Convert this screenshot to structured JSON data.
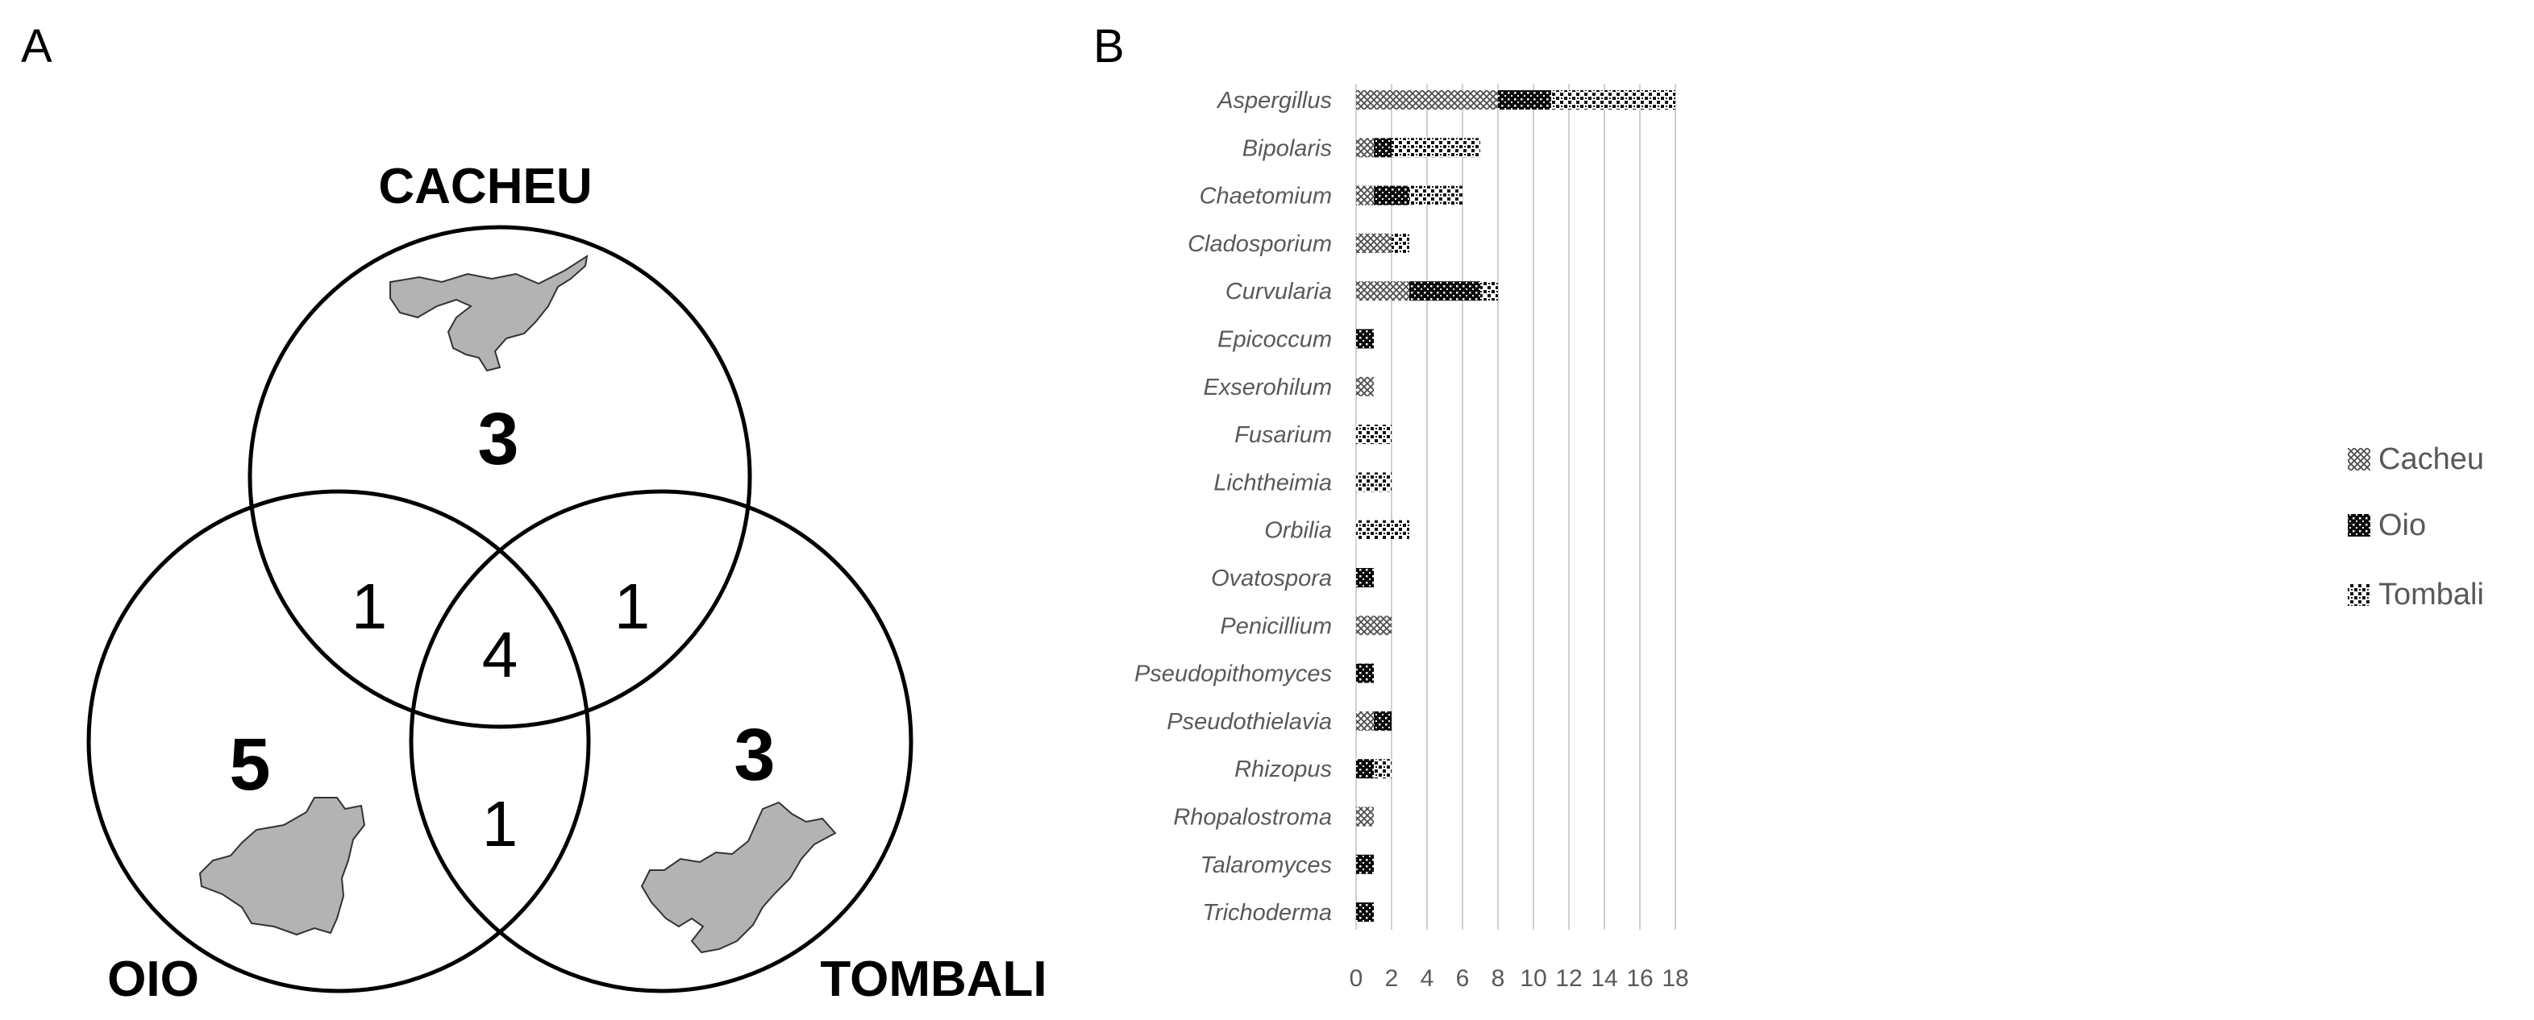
{
  "panel_a": {
    "label": "A",
    "regions": {
      "cacheu": "CACHEU",
      "oio": "OIO",
      "tombali": "TOMBALI"
    },
    "counts": {
      "cacheu_only": "3",
      "oio_only": "5",
      "tombali_only": "3",
      "cacheu_oio": "1",
      "cacheu_tombali": "1",
      "oio_tombali": "1",
      "all_three": "4"
    },
    "fill_color": "#b3b3b3"
  },
  "panel_b": {
    "label": "B"
  },
  "chart_data": {
    "type": "bar",
    "orientation": "horizontal",
    "stacked": true,
    "categories": [
      "Aspergillus",
      "Bipolaris",
      "Chaetomium",
      "Cladosporium",
      "Curvularia",
      "Epicoccum",
      "Exserohilum",
      "Fusarium",
      "Lichtheimia",
      "Orbilia",
      "Ovatospora",
      "Penicillium",
      "Pseudopithomyces",
      "Pseudothielavia",
      "Rhizopus",
      "Rhopalostroma",
      "Talaromyces",
      "Trichoderma"
    ],
    "series": [
      {
        "name": "Cacheu",
        "values": [
          8,
          1,
          1,
          2,
          3,
          0,
          1,
          0,
          0,
          0,
          0,
          2,
          0,
          1,
          0,
          1,
          0,
          0
        ],
        "color": "#8c8c8c"
      },
      {
        "name": "Oio",
        "values": [
          3,
          1,
          2,
          0,
          4,
          1,
          0,
          0,
          0,
          0,
          1,
          0,
          1,
          1,
          1,
          0,
          1,
          1
        ],
        "color": "#1a1a1a"
      },
      {
        "name": "Tombali",
        "values": [
          7,
          5,
          3,
          1,
          1,
          0,
          0,
          2,
          2,
          3,
          0,
          0,
          0,
          0,
          1,
          0,
          0,
          0
        ],
        "color": "#333333"
      }
    ],
    "xlim": [
      0,
      18
    ],
    "xticks": [
      "0",
      "2",
      "4",
      "6",
      "8",
      "10",
      "12",
      "14",
      "16",
      "18"
    ],
    "grid": true,
    "legend": "right",
    "title": "",
    "xlabel": "",
    "ylabel": ""
  }
}
